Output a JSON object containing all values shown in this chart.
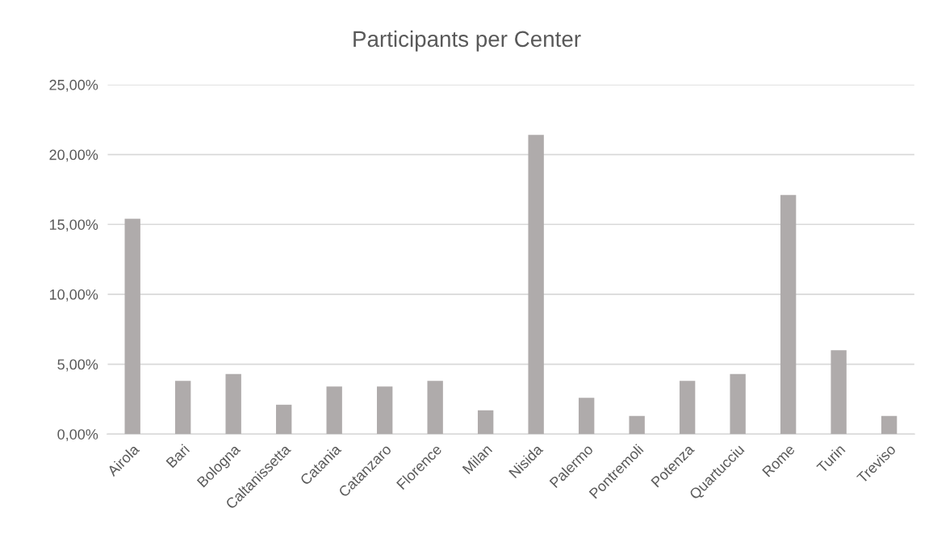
{
  "chart_data": {
    "type": "bar",
    "title": "Participants per Center",
    "categories": [
      "Airola",
      "Bari",
      "Bologna",
      "Caltanissetta",
      "Catania",
      "Catanzaro",
      "Florence",
      "Milan",
      "Nisida",
      "Palermo",
      "Pontremoli",
      "Potenza",
      "Quartucciu",
      "Rome",
      "Turin",
      "Treviso"
    ],
    "values": [
      15.4,
      3.8,
      4.3,
      2.1,
      3.4,
      3.4,
      3.8,
      1.7,
      21.4,
      2.6,
      1.3,
      3.8,
      4.3,
      17.1,
      6.0,
      1.3
    ],
    "color": "#afabab",
    "ylim": [
      0,
      25
    ],
    "yticks": [
      {
        "value": 0,
        "label": "0,00%"
      },
      {
        "value": 5,
        "label": "5,00%"
      },
      {
        "value": 10,
        "label": "10,00%"
      },
      {
        "value": 15,
        "label": "15,00%"
      },
      {
        "value": 20,
        "label": "20,00%"
      },
      {
        "value": 25,
        "label": "25,00%"
      }
    ],
    "grid": "y",
    "legend": false
  }
}
